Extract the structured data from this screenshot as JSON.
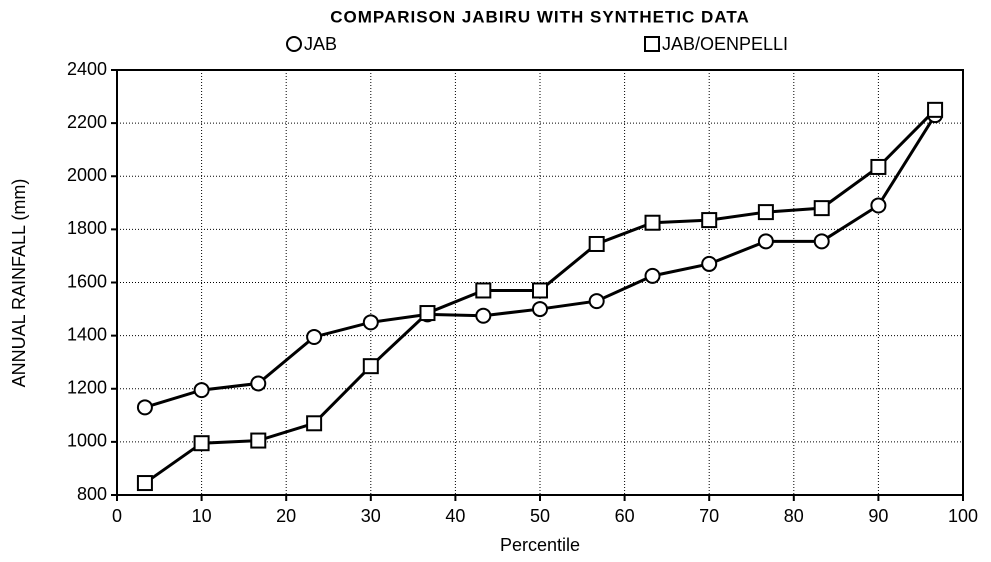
{
  "chart_data": {
    "type": "line",
    "title": "COMPARISON JABIRU WITH SYNTHETIC DATA",
    "x_label": "Percentile",
    "y_label": "ANNUAL RAINFALL (mm)",
    "x": [
      3.3,
      10,
      16.7,
      23.3,
      30,
      36.7,
      43.3,
      50,
      56.7,
      63.3,
      70,
      76.7,
      83.3,
      90,
      96.7
    ],
    "series": [
      {
        "name": "JAB",
        "color": "#000000",
        "marker": "circle",
        "values": [
          1130,
          1195,
          1220,
          1395,
          1450,
          1480,
          1475,
          1500,
          1530,
          1625,
          1670,
          1755,
          1755,
          1890,
          2230
        ]
      },
      {
        "name": "JAB/OENPELLI",
        "color": "#000000",
        "marker": "square",
        "values": [
          845,
          995,
          1005,
          1070,
          1285,
          1485,
          1570,
          1570,
          1745,
          1825,
          1835,
          1865,
          1880,
          2035,
          2250
        ]
      }
    ],
    "xlim": [
      0,
      100
    ],
    "xticks": [
      0,
      10,
      20,
      30,
      40,
      50,
      60,
      70,
      80,
      90,
      100
    ],
    "ylim": [
      800,
      2400
    ],
    "yticks": [
      800,
      1000,
      1200,
      1400,
      1600,
      1800,
      2000,
      2200,
      2400
    ],
    "grid": true,
    "legend": "top"
  }
}
